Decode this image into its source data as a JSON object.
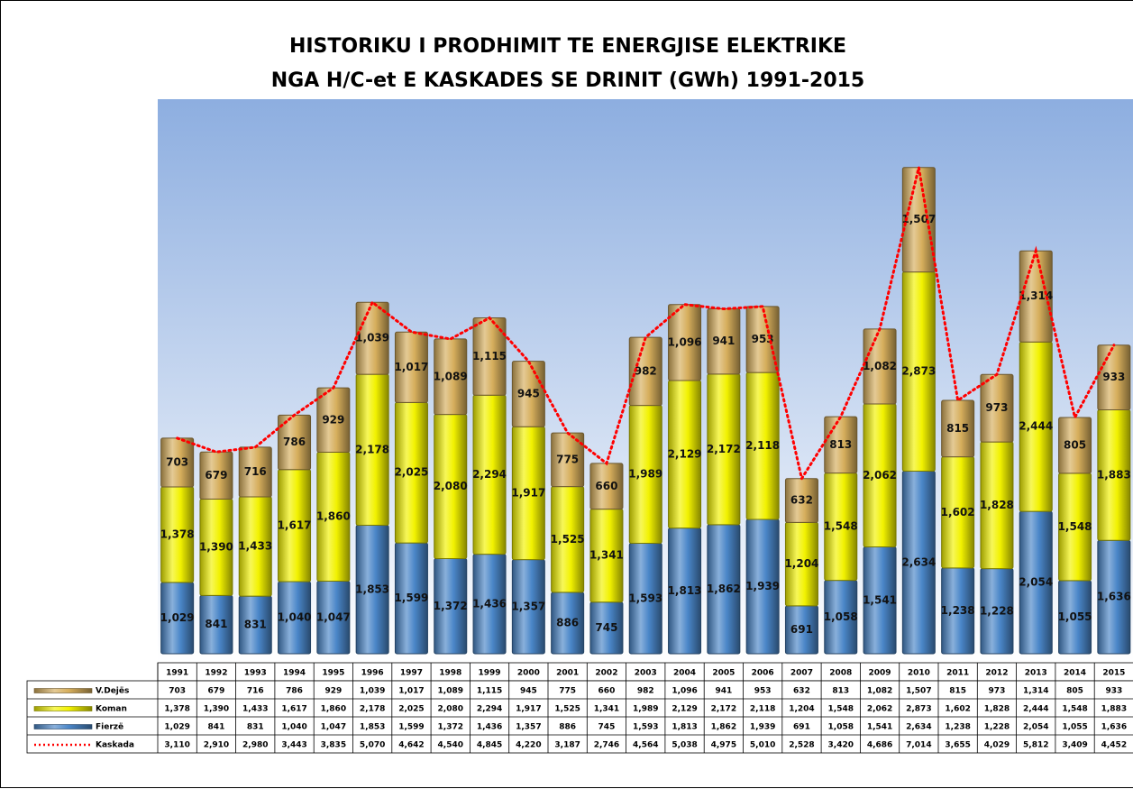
{
  "chart_data": {
    "type": "bar",
    "stacked": true,
    "title": [
      "HISTORIKU I PRODHIMIT TE ENERGJISE ELEKTRIKE",
      "NGA H/C-et E KASKADES SE DRINIT (GWh) 1991-2015"
    ],
    "categories": [
      "1991",
      "1992",
      "1993",
      "1994",
      "1995",
      "1996",
      "1997",
      "1998",
      "1999",
      "2000",
      "2001",
      "2002",
      "2003",
      "2004",
      "2005",
      "2006",
      "2007",
      "2008",
      "2009",
      "2010",
      "2011",
      "2012",
      "2013",
      "2014",
      "2015"
    ],
    "ylim": [
      0,
      8000
    ],
    "series": [
      {
        "name": "V.Dejës",
        "color": "#d6ae5c",
        "values": [
          703,
          679,
          716,
          786,
          929,
          1039,
          1017,
          1089,
          1115,
          945,
          775,
          660,
          982,
          1096,
          941,
          953,
          632,
          813,
          1082,
          1507,
          815,
          973,
          1314,
          805,
          933
        ],
        "value_labels": [
          "703",
          "679",
          "716",
          "786",
          "929",
          "1,039",
          "1,017",
          "1,089",
          "1,115",
          "945",
          "775",
          "660",
          "982",
          "1,096",
          "941",
          "953",
          "632",
          "813",
          "1,082",
          "1,507",
          "815",
          "973",
          "1,314",
          "805",
          "933"
        ]
      },
      {
        "name": "Koman",
        "color": "#f2f200",
        "values": [
          1378,
          1390,
          1433,
          1617,
          1860,
          2178,
          2025,
          2080,
          2294,
          1917,
          1525,
          1341,
          1989,
          2129,
          2172,
          2118,
          1204,
          1548,
          2062,
          2873,
          1602,
          1828,
          2444,
          1548,
          1883
        ],
        "value_labels": [
          "1,378",
          "1,390",
          "1,433",
          "1,617",
          "1,860",
          "2,178",
          "2,025",
          "2,080",
          "2,294",
          "1,917",
          "1,525",
          "1,341",
          "1,989",
          "2,129",
          "2,172",
          "2,118",
          "1,204",
          "1,548",
          "2,062",
          "2,873",
          "1,602",
          "1,828",
          "2,444",
          "1,548",
          "1,883"
        ]
      },
      {
        "name": "Fierzë",
        "color": "#4a86c8",
        "values": [
          1029,
          841,
          831,
          1040,
          1047,
          1853,
          1599,
          1372,
          1436,
          1357,
          886,
          745,
          1593,
          1813,
          1862,
          1939,
          691,
          1058,
          1541,
          2634,
          1238,
          1228,
          2054,
          1055,
          1636
        ],
        "value_labels": [
          "1,029",
          "841",
          "831",
          "1,040",
          "1,047",
          "1,853",
          "1,599",
          "1,372",
          "1,436",
          "1,357",
          "886",
          "745",
          "1,593",
          "1,813",
          "1,862",
          "1,939",
          "691",
          "1,058",
          "1,541",
          "2,634",
          "1,238",
          "1,228",
          "2,054",
          "1,055",
          "1,636"
        ]
      },
      {
        "name": "Kaskada",
        "type": "line",
        "color": "#ff0000",
        "values": [
          3110,
          2910,
          2980,
          3443,
          3835,
          5070,
          4642,
          4540,
          4845,
          4220,
          3187,
          2746,
          4564,
          5038,
          4975,
          5010,
          2528,
          3420,
          4686,
          7014,
          3655,
          4029,
          5812,
          3409,
          4452
        ],
        "value_labels": [
          "3,110",
          "2,910",
          "2,980",
          "3,443",
          "3,835",
          "5,070",
          "4,642",
          "4,540",
          "4,845",
          "4,220",
          "3,187",
          "2,746",
          "4,564",
          "5,038",
          "4,975",
          "5,010",
          "2,528",
          "3,420",
          "4,686",
          "7,014",
          "3,655",
          "4,029",
          "5,812",
          "3,409",
          "4,452"
        ]
      }
    ]
  }
}
